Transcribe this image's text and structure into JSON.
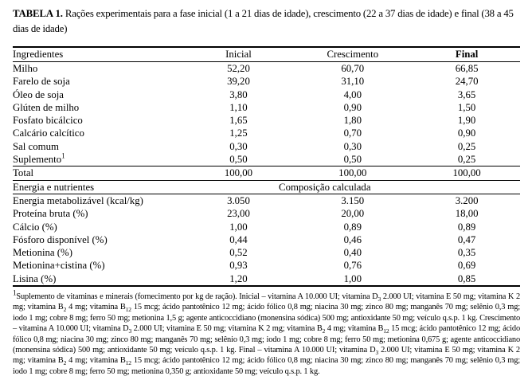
{
  "title": {
    "label": "TABELA 1.",
    "text": " Rações experimentais para a fase inicial (1 a 21 dias de idade), crescimento (22 a 37 dias de idade) e final (38 a 45 dias de idade)"
  },
  "table": {
    "columns": [
      "Ingredientes",
      "Inicial",
      "Crescimento",
      "Final"
    ],
    "ingredients": [
      {
        "label": "Milho",
        "values": [
          "52,20",
          "60,70",
          "66,85"
        ]
      },
      {
        "label": "Farelo de soja",
        "values": [
          "39,20",
          "31,10",
          "24,70"
        ]
      },
      {
        "label": "Óleo de soja",
        "values": [
          "3,80",
          "4,00",
          "3,65"
        ]
      },
      {
        "label": "Glúten de milho",
        "values": [
          "1,10",
          "0,90",
          "1,50"
        ]
      },
      {
        "label": "Fosfato bicálcico",
        "values": [
          "1,65",
          "1,80",
          "1,90"
        ]
      },
      {
        "label": "Calcário calcítico",
        "values": [
          "1,25",
          "0,70",
          "0,90"
        ]
      },
      {
        "label": "Sal comum",
        "values": [
          "0,30",
          "0,30",
          "0,25"
        ]
      },
      {
        "label": "Suplemento{^1}",
        "values": [
          "0,50",
          "0,50",
          "0,25"
        ]
      }
    ],
    "total": {
      "label": "Total",
      "values": [
        "100,00",
        "100,00",
        "100,00"
      ]
    },
    "section": {
      "label": "Energia e nutrientes",
      "span_label": "Composição calculada"
    },
    "nutrients": [
      {
        "label": "Energia metabolizável (kcal/kg)",
        "values": [
          "3.050",
          "3.150",
          "3.200"
        ]
      },
      {
        "label": "Proteína bruta (%)",
        "values": [
          "23,00",
          "20,00",
          "18,00"
        ]
      },
      {
        "label": "Cálcio (%)",
        "values": [
          "1,00",
          "0,89",
          "0,89"
        ]
      },
      {
        "label": "Fósforo disponível (%)",
        "values": [
          "0,44",
          "0,46",
          "0,47"
        ]
      },
      {
        "label": "Metionina (%)",
        "values": [
          "0,52",
          "0,40",
          "0,35"
        ]
      },
      {
        "label": "Metionina+cistina (%)",
        "values": [
          "0,93",
          "0,76",
          "0,69"
        ]
      },
      {
        "label": "Lisina (%)",
        "values": [
          "1,20",
          "1,00",
          "0,85"
        ]
      }
    ]
  },
  "footnote": "{^1}Suplemento de vitaminas e minerais (fornecimento por kg de ração). Inicial – vitamina A 10.000 UI; vitamina D{3} 2.000 UI; vitamina E 50 mg; vitamina K 2 mg; vitamina B{2} 4 mg; vitamina B{12} 15 mcg; ácido pantotênico 12 mg; ácido fólico 0,8 mg; niacina 30 mg; zinco 80 mg; manganês 70 mg; selênio 0,3 mg; iodo 1 mg; cobre 8 mg; ferro 50 mg; metionina 1,5 g; agente anticoccidiano (monensina sódica) 500 mg; antioxidante 50 mg; veículo q.s.p. 1 kg. Crescimento – vitamina A 10.000 UI; vitamina D{3} 2.000 UI; vitamina E 50 mg; vitamina K 2 mg; vitamina B{2} 4 mg; vitamina B{12} 15 mcg; ácido pantotênico 12 mg; ácido fólico 0,8 mg; niacina 30 mg; zinco 80 mg; manganês 70 mg; selênio 0,3 mg; iodo 1 mg; cobre 8 mg; ferro 50 mg; metionina 0,675 g; agente anticoccidiano (monensina sódica) 500 mg; antioxidante 50 mg; veículo q.s.p. 1 kg. Final – vitamina A 10.000 UI; vitamina D{3} 2.000 UI; vitamina E 50 mg; vitamina K 2 mg; vitamina B{2} 4 mg; vitamina B{12} 15 mcg; ácido pantotênico 12 mg; ácido fólico 0,8 mg; niacina 30 mg; zinco 80 mg; manganês 70 mg; selênio 0,3 mg; iodo 1 mg; cobre 8 mg; ferro 50 mg; metionina 0,350 g; antioxidante 50 mg; veículo q.s.p. 1 kg."
}
